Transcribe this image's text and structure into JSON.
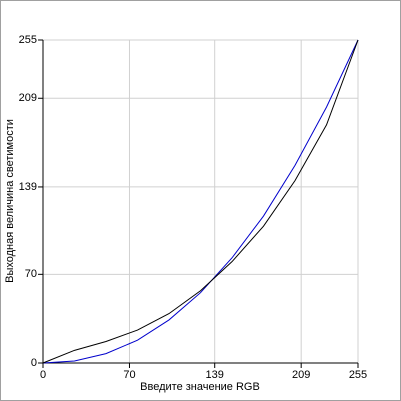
{
  "chart_data": {
    "type": "line",
    "x_label": "Введите значение RGB",
    "y_label": "Выходная величина светимости",
    "x": [
      0,
      25.5,
      51,
      76.5,
      102,
      127.5,
      153,
      178.5,
      204,
      229.5,
      255
    ],
    "series": [
      {
        "name": "Black",
        "color": "#000000",
        "values": [
          0,
          10,
          17,
          26,
          39,
          57,
          80,
          108,
          144,
          188,
          255
        ]
      },
      {
        "name": "Blue",
        "color": "#0000cc",
        "values": [
          0,
          1.6,
          7.4,
          18,
          34,
          55.5,
          83,
          116,
          156,
          202,
          255
        ]
      }
    ],
    "xlim": [
      0,
      255
    ],
    "ylim": [
      0,
      255
    ],
    "xticks": [
      0,
      70,
      139,
      209,
      255
    ],
    "yticks": [
      0,
      70,
      139,
      209,
      255
    ],
    "grid": true
  }
}
